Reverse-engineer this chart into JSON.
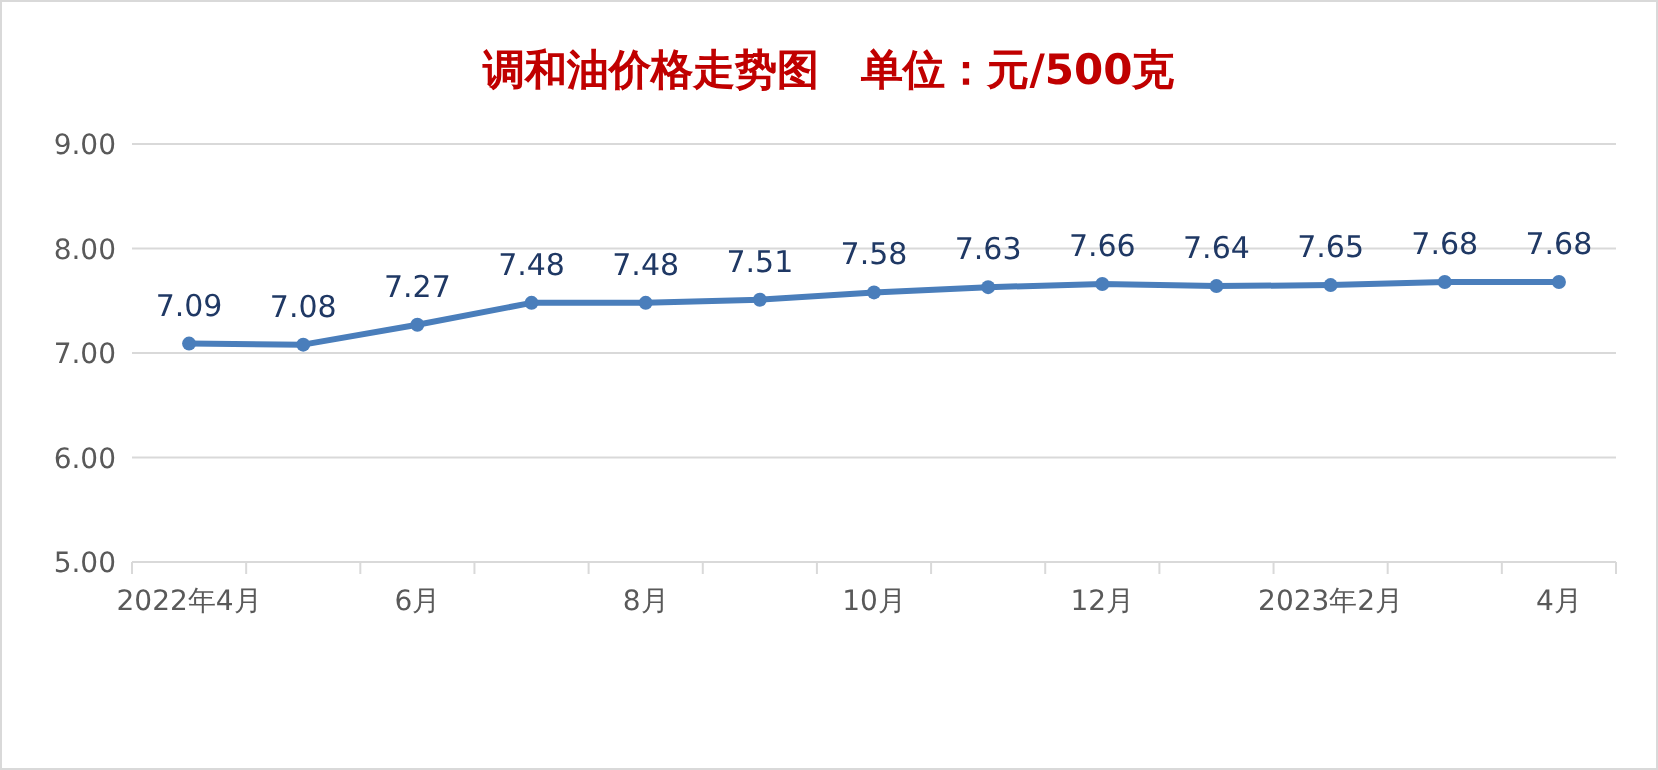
{
  "chart_data": {
    "type": "line",
    "title": "调和油价格走势图　单位：元/500克",
    "categories": [
      "2022年4月",
      null,
      "6月",
      null,
      "8月",
      null,
      "10月",
      null,
      "12月",
      null,
      "2023年2月",
      null,
      "4月"
    ],
    "series": [
      {
        "color": "#4a7ebb",
        "values": [
          7.09,
          7.08,
          7.27,
          7.48,
          7.48,
          7.51,
          7.58,
          7.63,
          7.66,
          7.64,
          7.65,
          7.68,
          7.68
        ]
      }
    ],
    "ylim": [
      5,
      9
    ],
    "yticks": [
      {
        "value": 5,
        "label": "5.00"
      },
      {
        "value": 6,
        "label": "6.00"
      },
      {
        "value": 7,
        "label": "7.00"
      },
      {
        "value": 8,
        "label": "8.00"
      },
      {
        "value": 9,
        "label": "9.00"
      }
    ],
    "grid": "y",
    "marker": "circle",
    "line_style": "solid",
    "data_labels": true
  }
}
